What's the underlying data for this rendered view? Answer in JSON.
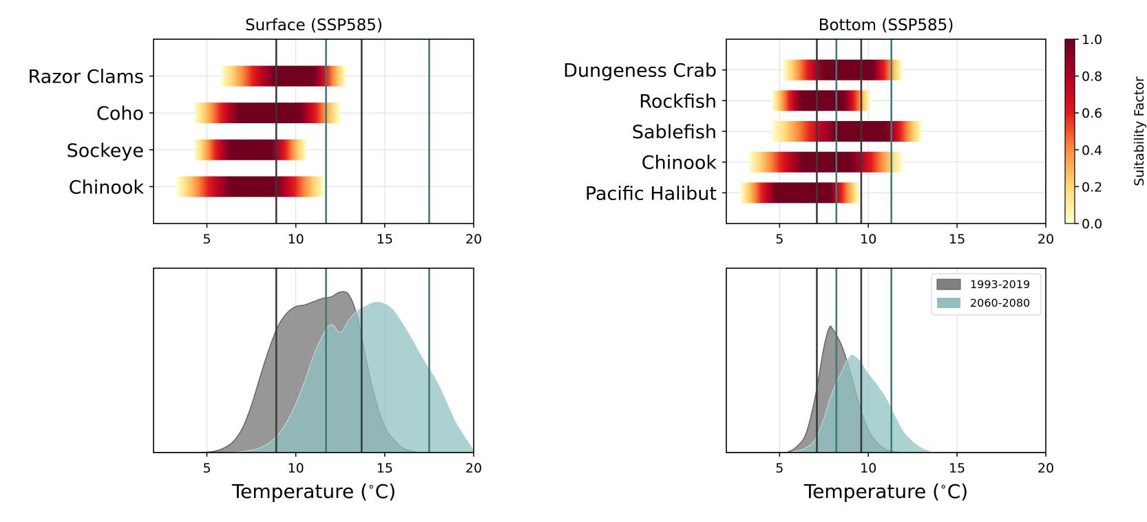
{
  "chart_data": [
    {
      "type": "heatmap",
      "panel": "surface_ranges",
      "title": "Surface (SSP585)",
      "xlim": [
        2,
        20
      ],
      "xticks": [
        5,
        10,
        15,
        20
      ],
      "species": [
        {
          "name": "Razor Clams",
          "range": [
            5.8,
            12.8
          ],
          "optimum": [
            8.8,
            11.0
          ]
        },
        {
          "name": "Coho",
          "range": [
            4.3,
            12.5
          ],
          "optimum": [
            6.8,
            10.2
          ]
        },
        {
          "name": "Sockeye",
          "range": [
            4.3,
            10.6
          ],
          "optimum": [
            6.3,
            8.6
          ]
        },
        {
          "name": "Chinook",
          "range": [
            3.3,
            11.6
          ],
          "optimum": [
            6.3,
            8.8
          ]
        }
      ],
      "vlines_historical": [
        8.9,
        13.7
      ],
      "vlines_future": [
        11.7,
        17.5
      ],
      "vline_colors": {
        "historical": "#3a3a3a",
        "future": "#3f7a78"
      }
    },
    {
      "type": "heatmap",
      "panel": "bottom_ranges",
      "title": "Bottom (SSP585)",
      "xlim": [
        2,
        20
      ],
      "xticks": [
        5,
        10,
        15,
        20
      ],
      "species": [
        {
          "name": "Dungeness Crab",
          "range": [
            5.2,
            11.9
          ],
          "optimum": [
            7.5,
            10.2
          ]
        },
        {
          "name": "Rockfish",
          "range": [
            4.6,
            10.1
          ],
          "optimum": [
            6.2,
            8.6
          ]
        },
        {
          "name": "Sablefish",
          "range": [
            4.6,
            13.0
          ],
          "optimum": [
            8.2,
            11.0
          ]
        },
        {
          "name": "Chinook",
          "range": [
            3.3,
            11.9
          ],
          "optimum": [
            6.3,
            9.0
          ]
        },
        {
          "name": "Pacific Halibut",
          "range": [
            2.8,
            9.5
          ],
          "optimum": [
            4.8,
            7.8
          ]
        }
      ],
      "vlines_historical": [
        7.1,
        9.6
      ],
      "vlines_future": [
        8.2,
        11.3
      ],
      "colorbar": {
        "label": "Suitability Factor",
        "ticks": [
          "0.0",
          "0.2",
          "0.4",
          "0.6",
          "0.8",
          "1.0"
        ]
      }
    },
    {
      "type": "area",
      "panel": "surface_density",
      "xlabel": "Temperature ($^\\circ$C)",
      "xlabel_text": "Temperature (",
      "xlabel_unit": "C)",
      "xlim": [
        2,
        20
      ],
      "xticks": [
        5,
        10,
        15,
        20
      ],
      "x": [
        2,
        4,
        5,
        5.5,
        6,
        6.5,
        7,
        7.5,
        8,
        8.5,
        9,
        9.5,
        10,
        10.5,
        11,
        11.5,
        12,
        12.5,
        13,
        13.5,
        14,
        14.5,
        15,
        15.5,
        16,
        16.5,
        17,
        17.5,
        18,
        18.5,
        19,
        19.5,
        20
      ],
      "series": [
        {
          "name": "1993-2019",
          "color": "#808080",
          "values": [
            0,
            0,
            0.003,
            0.01,
            0.03,
            0.07,
            0.15,
            0.29,
            0.47,
            0.64,
            0.78,
            0.86,
            0.9,
            0.91,
            0.93,
            0.95,
            0.96,
            0.99,
            0.97,
            0.82,
            0.55,
            0.32,
            0.16,
            0.08,
            0.03,
            0.01,
            0,
            0,
            0,
            0,
            0,
            0,
            0
          ]
        },
        {
          "name": "2060-2080",
          "color": "#8fc1c1",
          "values": [
            0,
            0,
            0,
            0,
            0,
            0.002,
            0.006,
            0.015,
            0.03,
            0.06,
            0.11,
            0.19,
            0.3,
            0.44,
            0.6,
            0.72,
            0.79,
            0.74,
            0.82,
            0.88,
            0.91,
            0.93,
            0.92,
            0.88,
            0.8,
            0.71,
            0.61,
            0.52,
            0.43,
            0.31,
            0.19,
            0.1,
            0.02
          ]
        }
      ],
      "vlines_historical": [
        8.9,
        13.7
      ],
      "vlines_future": [
        11.7,
        17.5
      ]
    },
    {
      "type": "area",
      "panel": "bottom_density",
      "xlabel": "Temperature ($^\\circ$C)",
      "xlabel_text": "Temperature (",
      "xlabel_unit": "C)",
      "xlim": [
        2,
        20
      ],
      "xticks": [
        5,
        10,
        15,
        20
      ],
      "x": [
        2,
        5,
        5.5,
        6,
        6.5,
        7,
        7.5,
        7.8,
        8,
        8.5,
        9,
        9.5,
        10,
        10.5,
        11,
        11.5,
        12,
        12.5,
        13,
        13.5,
        14,
        20
      ],
      "series": [
        {
          "name": "1993-2019",
          "color": "#808080",
          "values": [
            0,
            0,
            0.005,
            0.04,
            0.12,
            0.34,
            0.65,
            0.77,
            0.76,
            0.66,
            0.49,
            0.29,
            0.14,
            0.06,
            0.02,
            0.005,
            0,
            0,
            0,
            0,
            0,
            0
          ]
        },
        {
          "name": "2060-2080",
          "color": "#8fc1c1",
          "values": [
            0,
            0,
            0,
            0.01,
            0.03,
            0.08,
            0.21,
            0.32,
            0.38,
            0.5,
            0.6,
            0.57,
            0.49,
            0.42,
            0.34,
            0.23,
            0.13,
            0.07,
            0.03,
            0.01,
            0,
            0
          ]
        }
      ],
      "vlines_historical": [
        7.1,
        9.6
      ],
      "vlines_future": [
        8.2,
        11.3
      ],
      "legend": {
        "placement": "top-right",
        "entries": [
          "1993-2019",
          "2060-2080"
        ]
      }
    }
  ]
}
